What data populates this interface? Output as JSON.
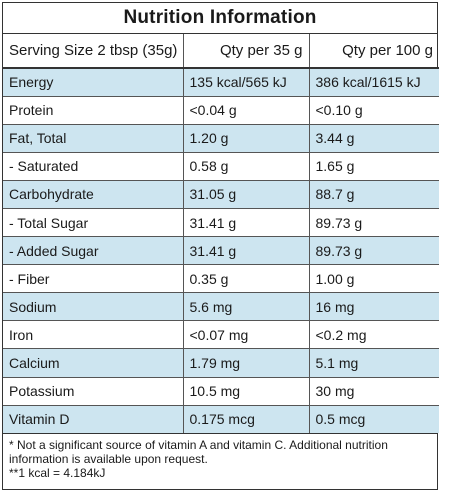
{
  "title": "Nutrition Information",
  "header": {
    "serving": "Serving Size 2 tbsp (35g)",
    "col_a": "Qty per 35 g",
    "col_b": "Qty per 100 g"
  },
  "rows": [
    {
      "label": "Energy",
      "a": "135 kcal/565 kJ",
      "b": "386 kcal/1615 kJ"
    },
    {
      "label": "Protein",
      "a": "<0.04 g",
      "b": "<0.10 g"
    },
    {
      "label": "Fat, Total",
      "a": "1.20 g",
      "b": "3.44 g"
    },
    {
      "label": "- Saturated",
      "a": "0.58 g",
      "b": "1.65 g"
    },
    {
      "label": "Carbohydrate",
      "a": "31.05 g",
      "b": "88.7 g"
    },
    {
      "label": "- Total Sugar",
      "a": "31.41 g",
      "b": "89.73 g"
    },
    {
      "label": "- Added Sugar",
      "a": "31.41 g",
      "b": "89.73 g"
    },
    {
      "label": "- Fiber",
      "a": "0.35 g",
      "b": "1.00 g"
    },
    {
      "label": "Sodium",
      "a": "5.6 mg",
      "b": "16 mg"
    },
    {
      "label": "Iron",
      "a": "<0.07 mg",
      "b": "<0.2 mg"
    },
    {
      "label": "Calcium",
      "a": "1.79 mg",
      "b": "5.1 mg"
    },
    {
      "label": "Potassium",
      "a": "10.5 mg",
      "b": "30 mg"
    },
    {
      "label": "Vitamin D",
      "a": "0.175 mcg",
      "b": "0.5 mcg"
    }
  ],
  "footnotes": {
    "line1": "* Not a significant source of vitamin A and vitamin C. Additional nutrition",
    "line2": "information is available upon request.",
    "line3": "**1 kcal = 4.184kJ"
  },
  "colors": {
    "stripe": "#cde5f0",
    "border": "#333333"
  }
}
